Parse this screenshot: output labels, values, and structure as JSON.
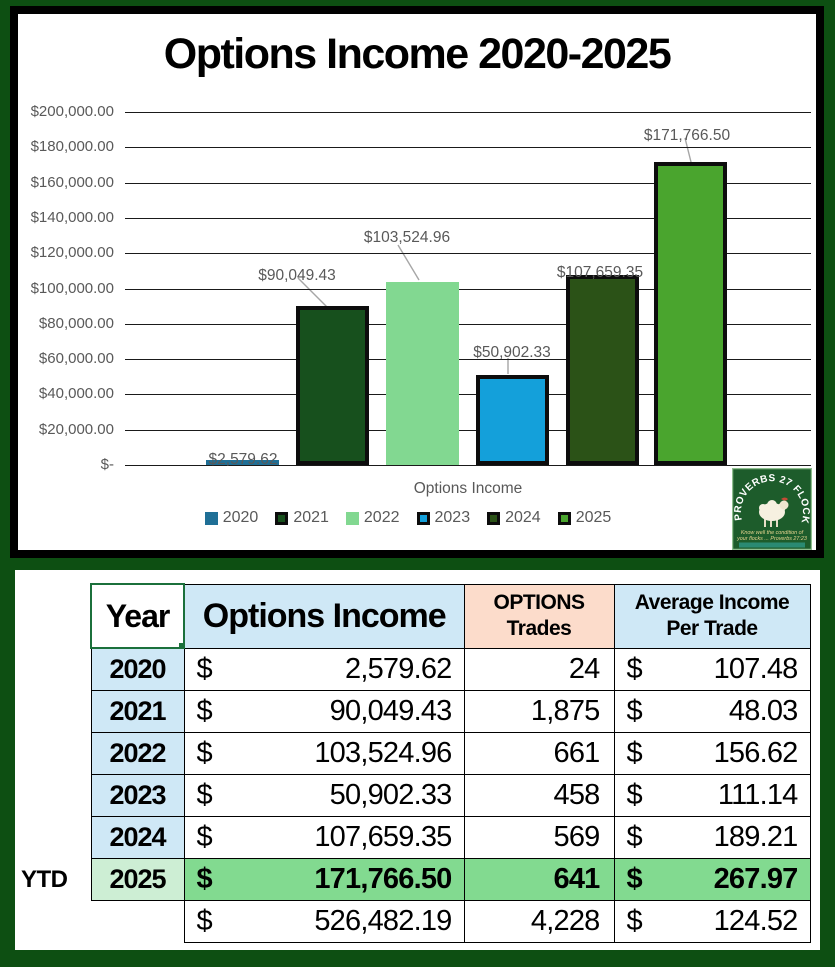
{
  "chart": {
    "title": "Options Income 2020-2025",
    "x_axis_label": "Options Income",
    "y_ticks": [
      "$200,000.00",
      "$180,000.00",
      "$160,000.00",
      "$140,000.00",
      "$120,000.00",
      "$100,000.00",
      "$80,000.00",
      "$60,000.00",
      "$40,000.00",
      "$20,000.00",
      "$-"
    ]
  },
  "chart_data": {
    "type": "bar",
    "title": "Options Income 2020-2025",
    "categories": [
      "2020",
      "2021",
      "2022",
      "2023",
      "2024",
      "2025"
    ],
    "values": [
      2579.62,
      90049.43,
      103524.96,
      50902.33,
      107659.35,
      171766.5
    ],
    "data_labels": [
      "$2,579.62",
      "$90,049.43",
      "$103,524.96",
      "$50,902.33",
      "$107,659.35",
      "$171,766.50"
    ],
    "colors": [
      "#1f6f96",
      "#17501d",
      "#82d891",
      "#14a0da",
      "#2b5217",
      "#4aa52e"
    ],
    "bordered_series": [
      false,
      true,
      false,
      true,
      true,
      true
    ],
    "bar_border_color": "#0d0d0d",
    "xlabel": "Options Income",
    "ylabel": "",
    "ylim": [
      0,
      200000
    ],
    "ytick_step": 20000,
    "grid": true,
    "legend_position": "bottom",
    "label_color": "#595959"
  },
  "logo": {
    "arc_text": "PROVERBS 27 FLOCKS",
    "caption_line1": "Know well the condition of",
    "caption_line2": "your flocks ... Proverbs 27:23"
  },
  "table": {
    "ytd_label": "YTD",
    "headers": {
      "year": "Year",
      "income": "Options Income",
      "trades_line1": "OPTIONS",
      "trades_line2": "Trades",
      "avg_line1": "Average Income",
      "avg_line2": "Per Trade"
    },
    "rows": [
      {
        "year": "2020",
        "currency": "$",
        "income": "2,579.62",
        "trades": "24",
        "avg_currency": "$",
        "avg": "107.48",
        "highlight": false
      },
      {
        "year": "2021",
        "currency": "$",
        "income": "90,049.43",
        "trades": "1,875",
        "avg_currency": "$",
        "avg": "48.03",
        "highlight": false
      },
      {
        "year": "2022",
        "currency": "$",
        "income": "103,524.96",
        "trades": "661",
        "avg_currency": "$",
        "avg": "156.62",
        "highlight": false
      },
      {
        "year": "2023",
        "currency": "$",
        "income": "50,902.33",
        "trades": "458",
        "avg_currency": "$",
        "avg": "111.14",
        "highlight": false
      },
      {
        "year": "2024",
        "currency": "$",
        "income": "107,659.35",
        "trades": "569",
        "avg_currency": "$",
        "avg": "189.21",
        "highlight": false
      },
      {
        "year": "2025",
        "currency": "$",
        "income": "171,766.50",
        "trades": "641",
        "avg_currency": "$",
        "avg": "267.97",
        "highlight": true
      }
    ],
    "total": {
      "currency": "$",
      "income": "526,482.19",
      "trades": "4,228",
      "avg_currency": "$",
      "avg": "124.52"
    },
    "colors": {
      "header_blue": "#cfe8f6",
      "header_peach": "#fcdccb",
      "highlight_green": "#82da90",
      "highlight_year_green": "#cdeed4",
      "selection_green": "#1b703b"
    }
  }
}
